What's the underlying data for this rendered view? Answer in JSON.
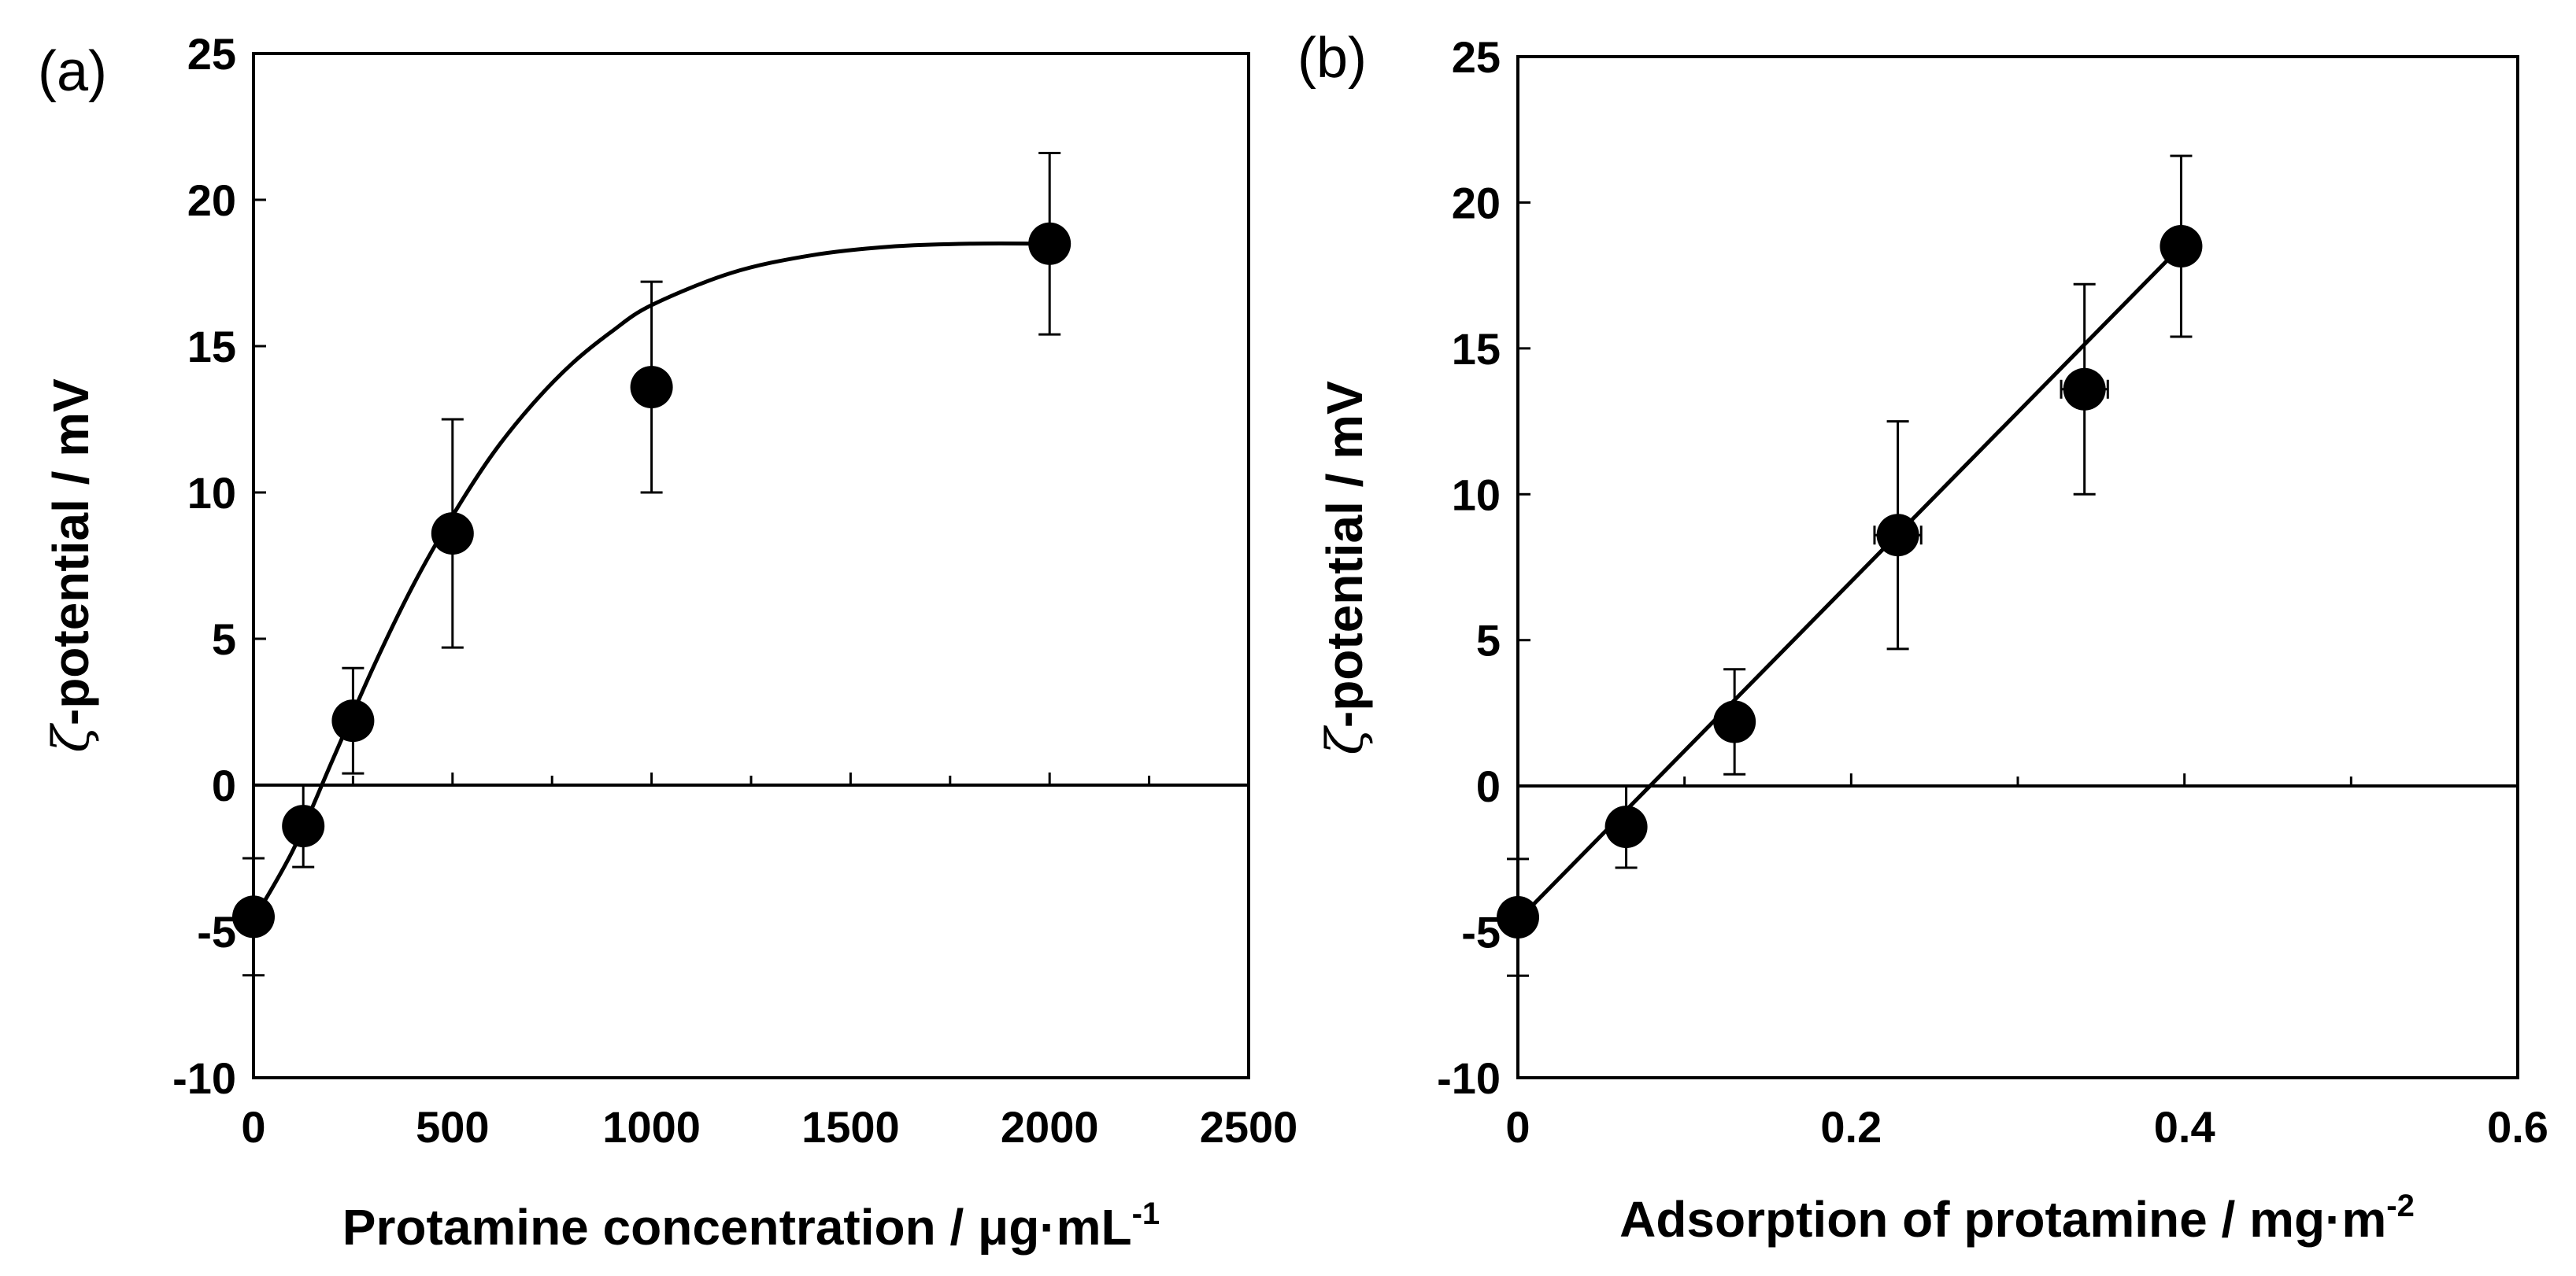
{
  "chart_data": [
    {
      "panel_label": "(a)",
      "type": "scatter",
      "xlabel": "Protamine concentration / μg·mL",
      "xlabel_sup": "-1",
      "ylabel_symbol": "ζ",
      "ylabel": "-potential / mV",
      "xlim": [
        0,
        2500
      ],
      "ylim": [
        -10,
        25
      ],
      "xticks": [
        0,
        500,
        1000,
        1500,
        2000,
        2500
      ],
      "xtick_labels": [
        "0",
        "500",
        "1000",
        "1500",
        "2000",
        "2500"
      ],
      "xticks_minor": [
        250,
        750,
        1250,
        1750,
        2250
      ],
      "yticks": [
        -10,
        -5,
        0,
        5,
        10,
        15,
        20,
        25
      ],
      "ytick_labels": [
        "-10",
        "-5",
        "0",
        "5",
        "10",
        "15",
        "20",
        "25"
      ],
      "series": [
        {
          "name": "zeta-potential",
          "x": [
            0,
            125,
            250,
            500,
            1000,
            2000
          ],
          "y": [
            -4.5,
            -1.4,
            2.2,
            8.6,
            13.6,
            18.5
          ],
          "yerr": [
            2.0,
            1.4,
            1.8,
            3.9,
            3.6,
            3.1
          ]
        }
      ],
      "fit": {
        "type": "curve",
        "x": [
          0,
          100,
          200,
          300,
          400,
          500,
          600,
          700,
          800,
          900,
          1000,
          1200,
          1400,
          1600,
          1800,
          2000
        ],
        "y": [
          -4.6,
          -2.2,
          0.9,
          4.0,
          6.8,
          9.2,
          11.3,
          13.0,
          14.4,
          15.5,
          16.4,
          17.5,
          18.1,
          18.4,
          18.5,
          18.5
        ]
      }
    },
    {
      "panel_label": "(b)",
      "type": "scatter",
      "xlabel": "Adsorption of protamine / mg·m",
      "xlabel_sup": "-2",
      "ylabel_symbol": "ζ",
      "ylabel": "-potential / mV",
      "xlim": [
        0,
        0.6
      ],
      "ylim": [
        -10,
        25
      ],
      "xticks": [
        0,
        0.2,
        0.4,
        0.6
      ],
      "xtick_labels": [
        "0",
        "0.2",
        "0.4",
        "0.6"
      ],
      "xticks_minor": [
        0.1,
        0.3,
        0.5
      ],
      "yticks": [
        -10,
        -5,
        0,
        5,
        10,
        15,
        20,
        25
      ],
      "ytick_labels": [
        "-10",
        "-5",
        "0",
        "5",
        "10",
        "15",
        "20",
        "25"
      ],
      "series": [
        {
          "name": "zeta-potential",
          "x": [
            0.0,
            0.065,
            0.13,
            0.228,
            0.34,
            0.398
          ],
          "y": [
            -4.5,
            -1.4,
            2.2,
            8.6,
            13.6,
            18.5
          ],
          "yerr": [
            2.0,
            1.4,
            1.8,
            3.9,
            3.6,
            3.1
          ],
          "xerr": [
            0,
            0,
            0,
            0.014,
            0.014,
            0.01
          ]
        }
      ],
      "fit": {
        "type": "line",
        "x": [
          0,
          0.398
        ],
        "y": [
          -4.6,
          18.5
        ]
      }
    }
  ]
}
